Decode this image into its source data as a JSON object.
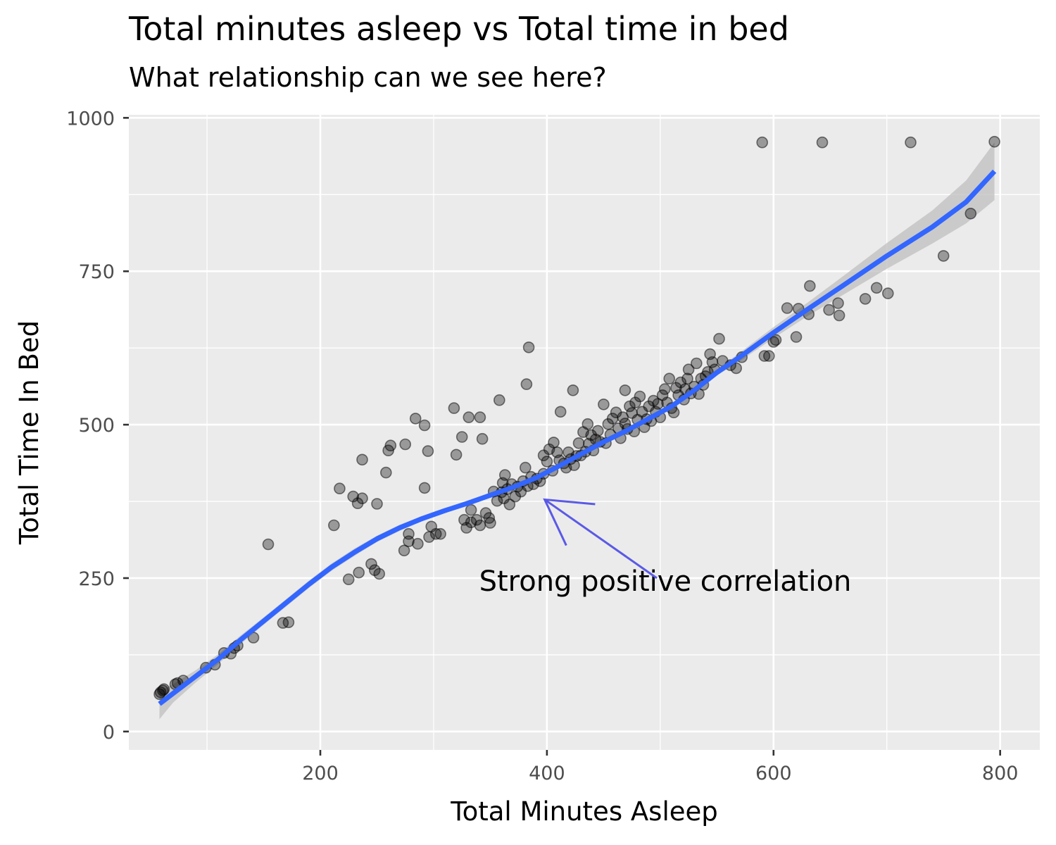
{
  "chart_data": {
    "type": "scatter",
    "title": "Total minutes asleep vs Total time in bed",
    "subtitle": "What relationship can we see here?",
    "xlabel": "Total Minutes Asleep",
    "ylabel": "Total Time In Bed",
    "xlim": [
      31,
      835
    ],
    "ylim": [
      -30,
      1005
    ],
    "xticks": [
      200,
      400,
      600,
      800
    ],
    "yticks": [
      0,
      250,
      500,
      750,
      1000
    ],
    "grid": true,
    "panel_background": "#ebebeb",
    "point_color": "#000000",
    "point_alpha": 0.35,
    "smooth_color": "#3366ff",
    "ribbon_color": "#bfbfbf",
    "annotation": {
      "text": "Strong positive correlation",
      "arrow_tip": [
        398,
        378
      ],
      "arrow_tail": [
        497,
        250
      ],
      "arrow_color": "#5a5ae6"
    },
    "points": [
      [
        58,
        61
      ],
      [
        59,
        64
      ],
      [
        61,
        67
      ],
      [
        62,
        69
      ],
      [
        72,
        77
      ],
      [
        74,
        79
      ],
      [
        79,
        83
      ],
      [
        99,
        104
      ],
      [
        107,
        109
      ],
      [
        115,
        128
      ],
      [
        121,
        127
      ],
      [
        124,
        136
      ],
      [
        127,
        140
      ],
      [
        141,
        153
      ],
      [
        154,
        305
      ],
      [
        167,
        177
      ],
      [
        172,
        178
      ],
      [
        212,
        336
      ],
      [
        217,
        396
      ],
      [
        225,
        248
      ],
      [
        229,
        383
      ],
      [
        233,
        372
      ],
      [
        234,
        259
      ],
      [
        237,
        380
      ],
      [
        237,
        443
      ],
      [
        245,
        273
      ],
      [
        248,
        263
      ],
      [
        250,
        371
      ],
      [
        252,
        257
      ],
      [
        258,
        422
      ],
      [
        260,
        458
      ],
      [
        262,
        466
      ],
      [
        274,
        295
      ],
      [
        275,
        468
      ],
      [
        278,
        310
      ],
      [
        278,
        322
      ],
      [
        284,
        510
      ],
      [
        286,
        306
      ],
      [
        292,
        397
      ],
      [
        292,
        499
      ],
      [
        295,
        457
      ],
      [
        296,
        317
      ],
      [
        298,
        334
      ],
      [
        302,
        322
      ],
      [
        306,
        322
      ],
      [
        318,
        527
      ],
      [
        320,
        451
      ],
      [
        325,
        480
      ],
      [
        327,
        345
      ],
      [
        329,
        332
      ],
      [
        331,
        512
      ],
      [
        333,
        361
      ],
      [
        333,
        341
      ],
      [
        338,
        345
      ],
      [
        341,
        336
      ],
      [
        341,
        512
      ],
      [
        343,
        477
      ],
      [
        346,
        356
      ],
      [
        349,
        348
      ],
      [
        350,
        340
      ],
      [
        353,
        391
      ],
      [
        356,
        376
      ],
      [
        358,
        540
      ],
      [
        360,
        390
      ],
      [
        361,
        405
      ],
      [
        362,
        380
      ],
      [
        363,
        418
      ],
      [
        365,
        395
      ],
      [
        367,
        370
      ],
      [
        369,
        403
      ],
      [
        372,
        383
      ],
      [
        374,
        399
      ],
      [
        377,
        391
      ],
      [
        379,
        408
      ],
      [
        381,
        430
      ],
      [
        382,
        566
      ],
      [
        383,
        400
      ],
      [
        384,
        626
      ],
      [
        386,
        415
      ],
      [
        388,
        403
      ],
      [
        391,
        412
      ],
      [
        394,
        408
      ],
      [
        397,
        420
      ],
      [
        397,
        450
      ],
      [
        400,
        440
      ],
      [
        402,
        460
      ],
      [
        405,
        425
      ],
      [
        406,
        471
      ],
      [
        409,
        455
      ],
      [
        411,
        442
      ],
      [
        412,
        521
      ],
      [
        415,
        437
      ],
      [
        417,
        430
      ],
      [
        419,
        455
      ],
      [
        421,
        444
      ],
      [
        423,
        556
      ],
      [
        424,
        434
      ],
      [
        426,
        449
      ],
      [
        428,
        470
      ],
      [
        430,
        450
      ],
      [
        432,
        488
      ],
      [
        434,
        456
      ],
      [
        436,
        501
      ],
      [
        437,
        469
      ],
      [
        439,
        483
      ],
      [
        441,
        458
      ],
      [
        443,
        476
      ],
      [
        445,
        490
      ],
      [
        447,
        472
      ],
      [
        450,
        533
      ],
      [
        452,
        470
      ],
      [
        454,
        501
      ],
      [
        456,
        484
      ],
      [
        458,
        510
      ],
      [
        461,
        520
      ],
      [
        463,
        494
      ],
      [
        465,
        478
      ],
      [
        467,
        512
      ],
      [
        469,
        502
      ],
      [
        469,
        556
      ],
      [
        471,
        493
      ],
      [
        473,
        530
      ],
      [
        475,
        519
      ],
      [
        477,
        489
      ],
      [
        478,
        536
      ],
      [
        480,
        508
      ],
      [
        482,
        546
      ],
      [
        484,
        521
      ],
      [
        486,
        496
      ],
      [
        488,
        509
      ],
      [
        490,
        530
      ],
      [
        492,
        506
      ],
      [
        494,
        539
      ],
      [
        496,
        521
      ],
      [
        498,
        534
      ],
      [
        500,
        512
      ],
      [
        502,
        548
      ],
      [
        504,
        558
      ],
      [
        506,
        536
      ],
      [
        508,
        575
      ],
      [
        510,
        527
      ],
      [
        512,
        520
      ],
      [
        514,
        560
      ],
      [
        516,
        548
      ],
      [
        518,
        569
      ],
      [
        521,
        541
      ],
      [
        522,
        558
      ],
      [
        524,
        575
      ],
      [
        525,
        590
      ],
      [
        527,
        551
      ],
      [
        530,
        562
      ],
      [
        532,
        600
      ],
      [
        534,
        550
      ],
      [
        536,
        575
      ],
      [
        538,
        565
      ],
      [
        540,
        579
      ],
      [
        542,
        586
      ],
      [
        544,
        615
      ],
      [
        546,
        602
      ],
      [
        548,
        590
      ],
      [
        552,
        640
      ],
      [
        555,
        604
      ],
      [
        562,
        597
      ],
      [
        567,
        592
      ],
      [
        572,
        610
      ],
      [
        590,
        960
      ],
      [
        592,
        612
      ],
      [
        596,
        612
      ],
      [
        600,
        635
      ],
      [
        602,
        638
      ],
      [
        612,
        690
      ],
      [
        620,
        643
      ],
      [
        622,
        689
      ],
      [
        631,
        680
      ],
      [
        632,
        726
      ],
      [
        643,
        960
      ],
      [
        649,
        687
      ],
      [
        657,
        698
      ],
      [
        658,
        678
      ],
      [
        681,
        705
      ],
      [
        691,
        723
      ],
      [
        701,
        714
      ],
      [
        721,
        960
      ],
      [
        750,
        775
      ],
      [
        774,
        844
      ],
      [
        795,
        961
      ]
    ],
    "smooth": [
      [
        58,
        45
      ],
      [
        70,
        62
      ],
      [
        90,
        90
      ],
      [
        110,
        118
      ],
      [
        130,
        150
      ],
      [
        150,
        180
      ],
      [
        170,
        210
      ],
      [
        190,
        240
      ],
      [
        210,
        268
      ],
      [
        230,
        292
      ],
      [
        250,
        314
      ],
      [
        270,
        332
      ],
      [
        290,
        347
      ],
      [
        310,
        360
      ],
      [
        330,
        372
      ],
      [
        350,
        385
      ],
      [
        370,
        398
      ],
      [
        390,
        413
      ],
      [
        410,
        432
      ],
      [
        430,
        452
      ],
      [
        450,
        472
      ],
      [
        470,
        490
      ],
      [
        490,
        510
      ],
      [
        510,
        530
      ],
      [
        530,
        556
      ],
      [
        550,
        585
      ],
      [
        570,
        610
      ],
      [
        600,
        650
      ],
      [
        630,
        688
      ],
      [
        660,
        725
      ],
      [
        700,
        775
      ],
      [
        740,
        822
      ],
      [
        770,
        863
      ],
      [
        795,
        913
      ]
    ],
    "ribbon": [
      [
        58,
        20,
        66
      ],
      [
        70,
        47,
        77
      ],
      [
        90,
        80,
        100
      ],
      [
        110,
        110,
        126
      ],
      [
        130,
        143,
        157
      ],
      [
        150,
        174,
        186
      ],
      [
        170,
        204,
        216
      ],
      [
        190,
        234,
        246
      ],
      [
        210,
        262,
        274
      ],
      [
        230,
        286,
        298
      ],
      [
        250,
        309,
        319
      ],
      [
        270,
        327,
        337
      ],
      [
        290,
        343,
        351
      ],
      [
        310,
        356,
        364
      ],
      [
        330,
        368,
        376
      ],
      [
        350,
        381,
        389
      ],
      [
        370,
        394,
        402
      ],
      [
        390,
        409,
        417
      ],
      [
        410,
        428,
        436
      ],
      [
        430,
        448,
        456
      ],
      [
        450,
        468,
        476
      ],
      [
        470,
        486,
        494
      ],
      [
        490,
        506,
        514
      ],
      [
        510,
        526,
        534
      ],
      [
        530,
        551,
        561
      ],
      [
        550,
        580,
        590
      ],
      [
        570,
        603,
        617
      ],
      [
        600,
        641,
        659
      ],
      [
        630,
        677,
        699
      ],
      [
        660,
        710,
        740
      ],
      [
        700,
        754,
        796
      ],
      [
        740,
        795,
        849
      ],
      [
        770,
        828,
        898
      ],
      [
        795,
        866,
        960
      ]
    ]
  }
}
